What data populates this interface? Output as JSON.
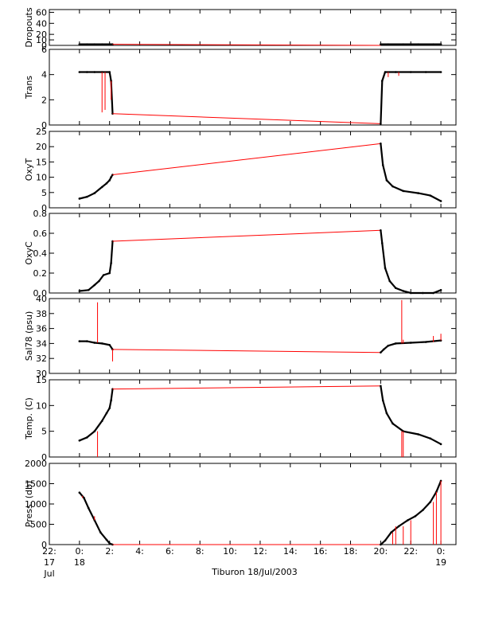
{
  "footer": {
    "caption": "Tiburon 18/Jul/2003"
  },
  "colors": {
    "trace": "#000000",
    "link": "#ff0000",
    "axis": "#000000"
  },
  "x_axis": {
    "range": [
      22.0,
      49.0
    ],
    "ticks": [
      {
        "value": 22,
        "lines": [
          "22:",
          "17",
          "Jul"
        ]
      },
      {
        "value": 24,
        "lines": [
          "0:",
          "18"
        ]
      },
      {
        "value": 26,
        "lines": [
          "2:"
        ]
      },
      {
        "value": 28,
        "lines": [
          "4:"
        ]
      },
      {
        "value": 30,
        "lines": [
          "6:"
        ]
      },
      {
        "value": 32,
        "lines": [
          "8:"
        ]
      },
      {
        "value": 34,
        "lines": [
          "10:"
        ]
      },
      {
        "value": 36,
        "lines": [
          "12:"
        ]
      },
      {
        "value": 38,
        "lines": [
          "14:"
        ]
      },
      {
        "value": 40,
        "lines": [
          "16:"
        ]
      },
      {
        "value": 42,
        "lines": [
          "18:"
        ]
      },
      {
        "value": 44,
        "lines": [
          "20:"
        ]
      },
      {
        "value": 46,
        "lines": [
          "22:"
        ]
      },
      {
        "value": 48,
        "lines": [
          "0:",
          "19"
        ]
      }
    ]
  },
  "chart_data": [
    {
      "type": "line",
      "ylabel": "Dropouts",
      "ylim": [
        0,
        65
      ],
      "yticks": [
        0,
        10,
        20,
        40,
        60
      ],
      "tick_labels": [
        "0",
        "10",
        "20",
        "40",
        "60"
      ],
      "series": [
        {
          "segment": "descent",
          "style": "trace",
          "x": [
            24.0,
            24.5,
            25.0,
            25.5,
            26.0,
            26.2
          ],
          "y": [
            2,
            2,
            2,
            2,
            2,
            2
          ]
        },
        {
          "segment": "gap",
          "style": "link",
          "x": [
            26.2,
            44.0
          ],
          "y": [
            2,
            0
          ]
        },
        {
          "segment": "ascent",
          "style": "trace",
          "x": [
            44.0,
            44.5,
            45.5,
            46.5,
            47.5,
            48.0
          ],
          "y": [
            2,
            2,
            2,
            2,
            2,
            2
          ]
        }
      ]
    },
    {
      "type": "line",
      "ylabel": "Trans",
      "ylim": [
        0,
        6
      ],
      "yticks": [
        0,
        2,
        4,
        6
      ],
      "tick_labels": [
        "0",
        "2",
        "4",
        "6"
      ],
      "series": [
        {
          "segment": "descent",
          "style": "trace",
          "x": [
            24.0,
            24.5,
            25.0,
            25.5,
            26.0,
            26.1,
            26.2
          ],
          "y": [
            4.2,
            4.2,
            4.2,
            4.2,
            4.2,
            3.5,
            0.9
          ]
        },
        {
          "segment": "gap",
          "style": "link",
          "x": [
            26.2,
            44.0
          ],
          "y": [
            0.9,
            0.1
          ]
        },
        {
          "segment": "ascent",
          "style": "trace",
          "x": [
            44.0,
            44.1,
            44.3,
            45.0,
            46.0,
            47.0,
            48.0
          ],
          "y": [
            0.1,
            3.5,
            4.2,
            4.2,
            4.2,
            4.2,
            4.2
          ]
        },
        {
          "segment": "spikes",
          "style": "link",
          "x": [
            25.5,
            25.7,
            26.1,
            44.5,
            45.2
          ],
          "y": [
            1.0,
            1.2,
            2.0,
            3.8,
            3.9
          ]
        }
      ]
    },
    {
      "type": "line",
      "ylabel": "OxyT",
      "ylim": [
        0,
        25
      ],
      "yticks": [
        0,
        5,
        10,
        15,
        20,
        25
      ],
      "tick_labels": [
        "0",
        "5",
        "10",
        "15",
        "20",
        "25"
      ],
      "series": [
        {
          "segment": "descent",
          "style": "trace",
          "x": [
            24.0,
            24.5,
            25.0,
            25.5,
            25.8,
            26.0,
            26.1,
            26.2
          ],
          "y": [
            3.0,
            3.6,
            4.8,
            6.8,
            8.0,
            9.0,
            10.0,
            10.8
          ]
        },
        {
          "segment": "gap",
          "style": "link",
          "x": [
            26.2,
            44.0
          ],
          "y": [
            10.8,
            21.0
          ]
        },
        {
          "segment": "ascent",
          "style": "trace",
          "x": [
            44.0,
            44.15,
            44.4,
            44.8,
            45.5,
            46.5,
            47.3,
            48.0
          ],
          "y": [
            21.0,
            14.0,
            9.0,
            7.0,
            5.5,
            4.8,
            4.0,
            2.2
          ]
        }
      ]
    },
    {
      "type": "line",
      "ylabel": "OxyC",
      "ylim": [
        0,
        0.8
      ],
      "yticks": [
        0.0,
        0.2,
        0.4,
        0.6,
        0.8
      ],
      "tick_labels": [
        "0.0",
        "0.2",
        "0.4",
        "0.6",
        "0.8"
      ],
      "series": [
        {
          "segment": "descent",
          "style": "trace",
          "x": [
            24.0,
            24.6,
            25.0,
            25.3,
            25.6,
            26.0,
            26.1,
            26.2
          ],
          "y": [
            0.02,
            0.03,
            0.08,
            0.12,
            0.18,
            0.2,
            0.3,
            0.52
          ]
        },
        {
          "segment": "gap",
          "style": "link",
          "x": [
            26.2,
            44.0
          ],
          "y": [
            0.52,
            0.63
          ]
        },
        {
          "segment": "ascent",
          "style": "trace",
          "x": [
            44.0,
            44.1,
            44.3,
            44.6,
            45.0,
            45.5,
            46.0,
            46.8,
            47.5,
            48.0
          ],
          "y": [
            0.63,
            0.5,
            0.25,
            0.12,
            0.05,
            0.02,
            0.0,
            0.0,
            0.0,
            0.03
          ]
        }
      ]
    },
    {
      "type": "line",
      "ylabel": "Sal78 (psu)",
      "ylim": [
        30,
        40
      ],
      "yticks": [
        30,
        32,
        34,
        36,
        38,
        40
      ],
      "tick_labels": [
        "30",
        "32",
        "34",
        "36",
        "38",
        "40"
      ],
      "series": [
        {
          "segment": "descent",
          "style": "trace",
          "x": [
            24.0,
            24.5,
            25.0,
            25.5,
            26.0,
            26.2
          ],
          "y": [
            34.3,
            34.3,
            34.1,
            34.0,
            33.8,
            33.2
          ]
        },
        {
          "segment": "gap",
          "style": "link",
          "x": [
            26.2,
            44.0
          ],
          "y": [
            33.2,
            32.8
          ]
        },
        {
          "segment": "ascent",
          "style": "trace",
          "x": [
            44.0,
            44.2,
            44.5,
            45.0,
            46.0,
            47.0,
            48.0
          ],
          "y": [
            32.8,
            33.2,
            33.7,
            34.0,
            34.1,
            34.2,
            34.4
          ]
        },
        {
          "segment": "spikes",
          "style": "link",
          "x": [
            25.2,
            26.2,
            45.4,
            45.5,
            47.5,
            48.0
          ],
          "y": [
            39.5,
            31.6,
            39.8,
            34.5,
            35.0,
            35.3
          ]
        }
      ]
    },
    {
      "type": "line",
      "ylabel": "Temp. (C)",
      "ylim": [
        0,
        15
      ],
      "yticks": [
        0,
        5,
        10,
        15
      ],
      "tick_labels": [
        "0",
        "5",
        "10",
        "15"
      ],
      "series": [
        {
          "segment": "descent",
          "style": "trace",
          "x": [
            24.0,
            24.5,
            25.0,
            25.5,
            25.8,
            26.0,
            26.1,
            26.2
          ],
          "y": [
            3.2,
            3.8,
            5.0,
            7.0,
            8.5,
            9.5,
            11.0,
            13.2
          ]
        },
        {
          "segment": "gap",
          "style": "link",
          "x": [
            26.2,
            44.0
          ],
          "y": [
            13.2,
            13.8
          ]
        },
        {
          "segment": "ascent",
          "style": "trace",
          "x": [
            44.0,
            44.15,
            44.4,
            44.8,
            45.5,
            46.5,
            47.3,
            48.0
          ],
          "y": [
            13.8,
            11.0,
            8.5,
            6.5,
            5.0,
            4.4,
            3.6,
            2.5
          ]
        },
        {
          "segment": "spikes",
          "style": "link",
          "x": [
            25.2,
            45.4,
            45.5
          ],
          "y": [
            0.0,
            0.0,
            0.0
          ]
        }
      ]
    },
    {
      "type": "line",
      "ylabel": "Press. (db)",
      "ylim": [
        0,
        2000
      ],
      "yticks": [
        0,
        500,
        1000,
        1500,
        2000
      ],
      "tick_labels": [
        "0",
        "500",
        "1000",
        "1500",
        "2000"
      ],
      "series": [
        {
          "segment": "descent",
          "style": "trace",
          "x": [
            24.0,
            24.3,
            24.6,
            25.0,
            25.4,
            25.8,
            26.0,
            26.2
          ],
          "y": [
            1280,
            1150,
            900,
            600,
            300,
            120,
            30,
            0
          ]
        },
        {
          "segment": "gap",
          "style": "link",
          "x": [
            26.2,
            44.0
          ],
          "y": [
            0,
            0
          ]
        },
        {
          "segment": "ascent",
          "style": "trace",
          "x": [
            44.0,
            44.3,
            44.7,
            45.2,
            45.8,
            46.3,
            46.8,
            47.3,
            47.7,
            48.0
          ],
          "y": [
            0,
            100,
            300,
            450,
            600,
            700,
            850,
            1050,
            1300,
            1570
          ]
        },
        {
          "segment": "spikes",
          "style": "link",
          "x": [
            24.2,
            25.0,
            44.8,
            45.0,
            45.5,
            46.0,
            47.5,
            47.7,
            48.0
          ],
          "y": [
            1200,
            700,
            0,
            0,
            0,
            0,
            0,
            0,
            0
          ]
        }
      ]
    }
  ]
}
